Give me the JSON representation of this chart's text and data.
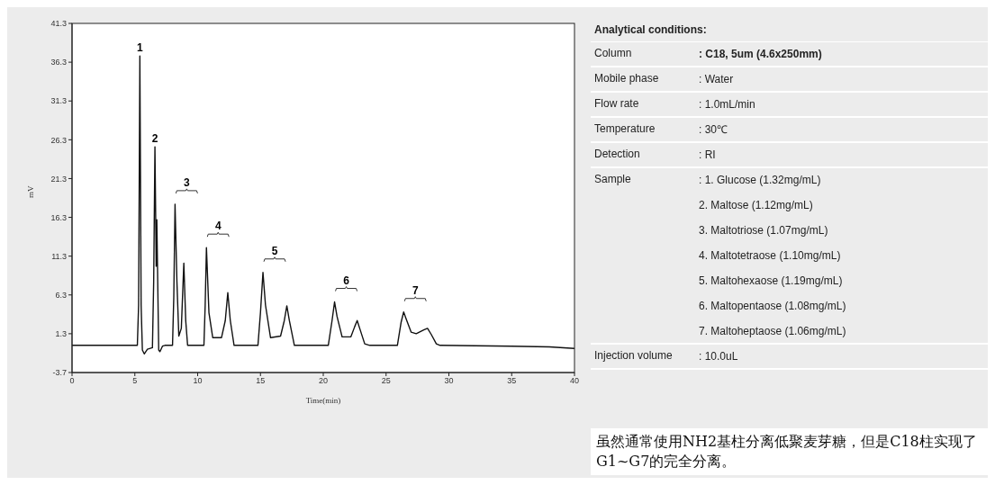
{
  "chart_data": [
    {
      "type": "line",
      "xlabel": "Time(min)",
      "ylabel": "mV",
      "xlim": [
        0,
        40
      ],
      "xticks": [
        0,
        5,
        10,
        15,
        20,
        25,
        30,
        35,
        40
      ],
      "ylim": [
        -3.7,
        41.3
      ],
      "yticks": [
        -3.7,
        1.3,
        6.3,
        11.3,
        16.3,
        21.3,
        26.3,
        31.3,
        36.3,
        41.3
      ],
      "grid": false,
      "legend": false,
      "marker": "none",
      "line_style": "solid",
      "series": [
        {
          "color": "#111111",
          "x": [
            0,
            5.2,
            5.3,
            5.4,
            5.5,
            5.6,
            5.75,
            6.0,
            6.4,
            6.5,
            6.6,
            6.7,
            6.75,
            6.9,
            7.0,
            7.2,
            7.4,
            8.0,
            8.1,
            8.2,
            8.35,
            8.5,
            8.7,
            8.9,
            9.05,
            9.2,
            10.5,
            10.6,
            10.7,
            10.9,
            11.2,
            11.9,
            12.2,
            12.4,
            12.6,
            12.9,
            14.8,
            15.0,
            15.2,
            15.4,
            15.8,
            16.6,
            16.9,
            17.1,
            17.3,
            17.7,
            20.4,
            20.7,
            20.9,
            21.1,
            21.5,
            22.2,
            22.5,
            22.7,
            22.9,
            23.3,
            23.7,
            25.9,
            26.2,
            26.4,
            26.6,
            27.0,
            27.4,
            28.0,
            28.3,
            28.6,
            29.0,
            29.3,
            35,
            38,
            40
          ],
          "values": [
            -0.2,
            -0.2,
            5,
            37.1,
            5,
            -0.8,
            -1.3,
            -0.7,
            -0.5,
            8,
            25.4,
            10,
            16.0,
            -0.8,
            -1.0,
            -0.3,
            -0.2,
            -0.2,
            6,
            18.0,
            8,
            1.0,
            2,
            10.4,
            3,
            -0.2,
            -0.2,
            5,
            12.4,
            4,
            0.8,
            0.8,
            3,
            6.6,
            3,
            -0.2,
            -0.2,
            4,
            9.2,
            5,
            0.8,
            1,
            3,
            4.9,
            3,
            -0.2,
            -0.2,
            3,
            5.4,
            3.5,
            0.9,
            0.9,
            2.2,
            3.0,
            2,
            0,
            -0.2,
            -0.2,
            2.8,
            4.1,
            3.2,
            1.5,
            1.3,
            1.8,
            2.0,
            1.2,
            0,
            -0.2,
            -0.3,
            -0.4,
            -0.6
          ]
        }
      ],
      "annotations": [
        {
          "text": "1",
          "x": 5.4,
          "y": 37.1
        },
        {
          "text": "2",
          "x": 6.6,
          "y": 25.4
        },
        {
          "text": "3",
          "x": 8.2,
          "y": 18.0
        },
        {
          "text": "4",
          "x": 10.7,
          "y": 12.4
        },
        {
          "text": "5",
          "x": 15.2,
          "y": 9.2
        },
        {
          "text": "6",
          "x": 20.9,
          "y": 5.4
        },
        {
          "text": "7",
          "x": 26.4,
          "y": 4.1
        }
      ]
    },
    {
      "type": "other",
      "title": "Analytical conditions:",
      "annotations": [
        "Column",
        ": C18, 5um (4.6x250mm)",
        "Mobile phase",
        ": Water",
        "Flow rate",
        ": 1.0mL/min",
        "Temperature",
        ": 30℃",
        "Detection",
        ": RI",
        "Sample",
        ": 1. Glucose (1.32mg/mL)\n2. Maltose (1.12mg/mL)\n3. Maltotriose (1.07mg/mL)\n4. Maltotetraose (1.10mg/mL)\n5. Maltohexaose (1.19mg/mL)\n6. Maltopentaose (1.08mg/mL)\n7. Maltoheptaose (1.06mg/mL)",
        "Injection volume",
        ": 10.0uL"
      ]
    },
    {
      "type": "other",
      "annotations": [
        "虽然通常使用NH2基柱分离低聚麦芽糖，但是C18柱实现了G1~G7的完全分离。"
      ]
    }
  ]
}
